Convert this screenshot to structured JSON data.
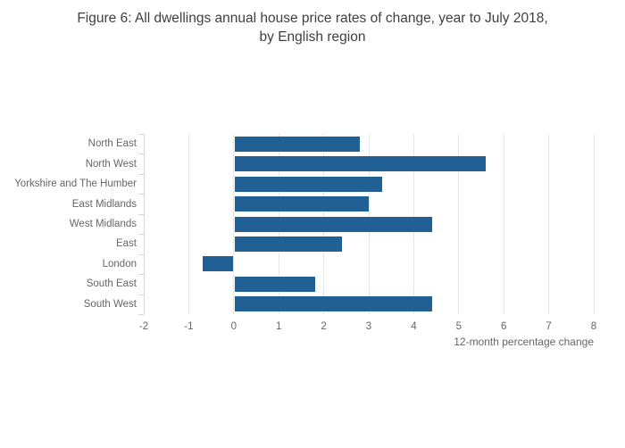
{
  "title": {
    "line1": "Figure 6: All dwellings annual house price rates of change, year to July 2018,",
    "line2": "by English region"
  },
  "chart_data": {
    "type": "bar",
    "orientation": "horizontal",
    "title": "Figure 6: All dwellings annual house price rates of change, year to July 2018, by English region",
    "categories": [
      "North East",
      "North West",
      "Yorkshire and The Humber",
      "East Midlands",
      "West Midlands",
      "East",
      "London",
      "South East",
      "South West"
    ],
    "values": [
      2.8,
      5.6,
      3.3,
      3.0,
      4.4,
      2.4,
      -0.7,
      1.8,
      4.4
    ],
    "xlabel": "12-month percentage change",
    "ylabel": "",
    "xlim": [
      -2,
      8
    ],
    "xticks": [
      -2,
      -1,
      0,
      1,
      2,
      3,
      4,
      5,
      6,
      7,
      8
    ],
    "grid": true,
    "legend": "none",
    "colors": {
      "bar": "#206095",
      "gridline": "#e6e6e6",
      "axis_line": "#ccd6eb",
      "tick_label": "#666666",
      "axis_title": "#666666",
      "chart_title": "#3f3f3f"
    }
  }
}
